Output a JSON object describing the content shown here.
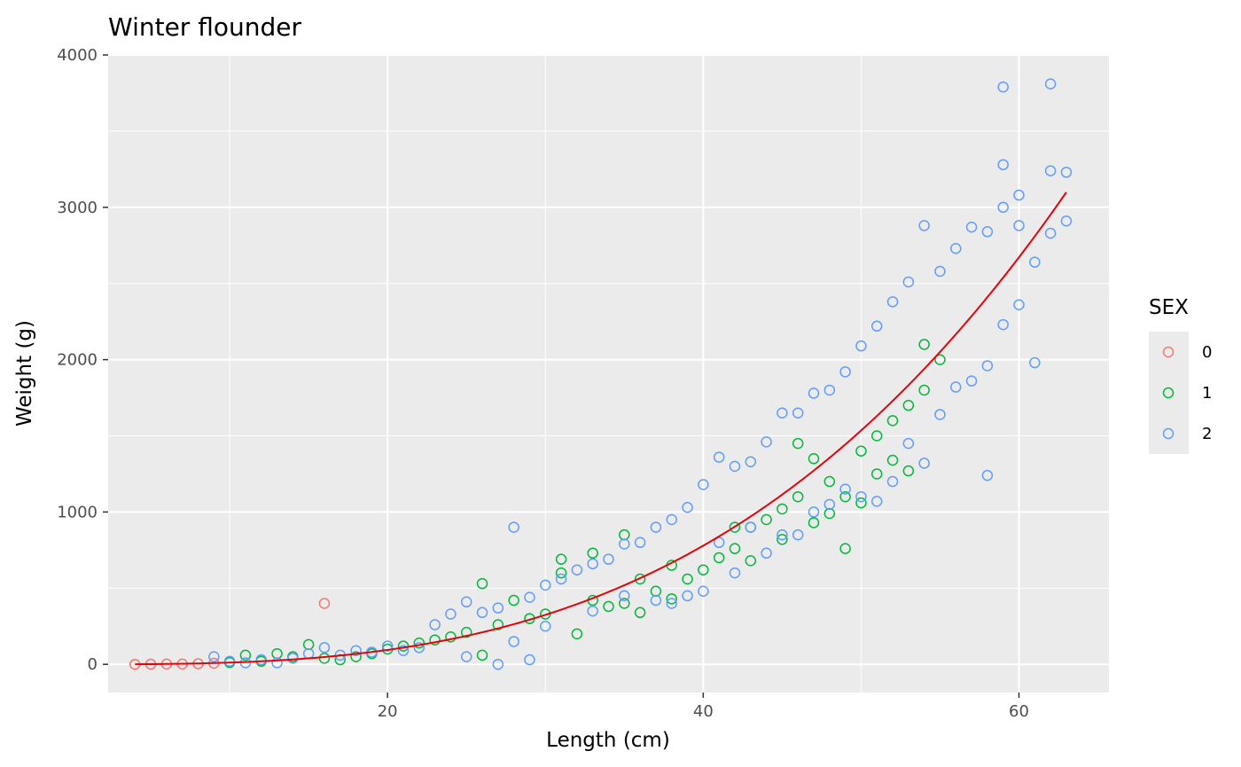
{
  "chart_data": {
    "type": "scatter",
    "title": "Winter flounder",
    "xlabel": "Length (cm)",
    "ylabel": "Weight (g)",
    "xlim": [
      2.3,
      65.7
    ],
    "ylim": [
      -185,
      4000
    ],
    "x_ticks": [
      20,
      40,
      60
    ],
    "y_ticks": [
      0,
      1000,
      2000,
      3000,
      4000
    ],
    "x_tick_labels": [
      "20",
      "40",
      "60"
    ],
    "y_tick_labels": [
      "0",
      "1000",
      "2000",
      "3000",
      "4000"
    ],
    "grid": true,
    "legend": {
      "title": "SEX",
      "placement": "right",
      "entries": [
        {
          "label": "0",
          "color": "#F8766D"
        },
        {
          "label": "1",
          "color": "#00BA38"
        },
        {
          "label": "2",
          "color": "#619CFF"
        }
      ]
    },
    "series": [
      {
        "name": "0",
        "color": "#F8766D",
        "points": [
          [
            4,
            0
          ],
          [
            5,
            1
          ],
          [
            6,
            2
          ],
          [
            7,
            2
          ],
          [
            8,
            4
          ],
          [
            9,
            7
          ],
          [
            16,
            400
          ]
        ]
      },
      {
        "name": "1",
        "color": "#00BA38",
        "points": [
          [
            10,
            12
          ],
          [
            11,
            60
          ],
          [
            12,
            20
          ],
          [
            13,
            70
          ],
          [
            14,
            50
          ],
          [
            15,
            130
          ],
          [
            16,
            40
          ],
          [
            17,
            30
          ],
          [
            18,
            50
          ],
          [
            19,
            70
          ],
          [
            20,
            100
          ],
          [
            21,
            120
          ],
          [
            22,
            140
          ],
          [
            23,
            160
          ],
          [
            24,
            180
          ],
          [
            25,
            210
          ],
          [
            26,
            530
          ],
          [
            26,
            60
          ],
          [
            27,
            260
          ],
          [
            28,
            420
          ],
          [
            29,
            300
          ],
          [
            30,
            330
          ],
          [
            31,
            690
          ],
          [
            31,
            600
          ],
          [
            32,
            200
          ],
          [
            33,
            730
          ],
          [
            33,
            420
          ],
          [
            34,
            380
          ],
          [
            35,
            850
          ],
          [
            35,
            400
          ],
          [
            36,
            340
          ],
          [
            36,
            560
          ],
          [
            37,
            480
          ],
          [
            38,
            430
          ],
          [
            38,
            650
          ],
          [
            39,
            560
          ],
          [
            40,
            620
          ],
          [
            41,
            700
          ],
          [
            42,
            900
          ],
          [
            42,
            760
          ],
          [
            43,
            680
          ],
          [
            43,
            900
          ],
          [
            44,
            950
          ],
          [
            45,
            1020
          ],
          [
            45,
            820
          ],
          [
            46,
            1100
          ],
          [
            46,
            1450
          ],
          [
            47,
            1350
          ],
          [
            47,
            930
          ],
          [
            48,
            990
          ],
          [
            48,
            1200
          ],
          [
            49,
            760
          ],
          [
            49,
            1100
          ],
          [
            50,
            1400
          ],
          [
            50,
            1060
          ],
          [
            51,
            1500
          ],
          [
            51,
            1250
          ],
          [
            52,
            1600
          ],
          [
            52,
            1340
          ],
          [
            53,
            1270
          ],
          [
            53,
            1700
          ],
          [
            54,
            1800
          ],
          [
            54,
            2100
          ],
          [
            55,
            2000
          ]
        ]
      },
      {
        "name": "2",
        "color": "#619CFF",
        "points": [
          [
            9,
            50
          ],
          [
            10,
            20
          ],
          [
            11,
            10
          ],
          [
            12,
            30
          ],
          [
            13,
            10
          ],
          [
            14,
            40
          ],
          [
            15,
            70
          ],
          [
            16,
            110
          ],
          [
            17,
            60
          ],
          [
            18,
            90
          ],
          [
            19,
            80
          ],
          [
            20,
            120
          ],
          [
            21,
            90
          ],
          [
            22,
            110
          ],
          [
            23,
            260
          ],
          [
            24,
            330
          ],
          [
            25,
            410
          ],
          [
            25,
            50
          ],
          [
            26,
            340
          ],
          [
            27,
            0
          ],
          [
            27,
            370
          ],
          [
            28,
            900
          ],
          [
            28,
            150
          ],
          [
            29,
            440
          ],
          [
            29,
            30
          ],
          [
            30,
            520
          ],
          [
            30,
            250
          ],
          [
            31,
            560
          ],
          [
            32,
            620
          ],
          [
            33,
            660
          ],
          [
            33,
            350
          ],
          [
            34,
            690
          ],
          [
            35,
            790
          ],
          [
            35,
            450
          ],
          [
            36,
            800
          ],
          [
            37,
            900
          ],
          [
            37,
            420
          ],
          [
            38,
            950
          ],
          [
            38,
            400
          ],
          [
            39,
            1030
          ],
          [
            39,
            450
          ],
          [
            40,
            1180
          ],
          [
            40,
            480
          ],
          [
            41,
            1360
          ],
          [
            41,
            800
          ],
          [
            42,
            1300
          ],
          [
            42,
            600
          ],
          [
            43,
            1330
          ],
          [
            43,
            900
          ],
          [
            44,
            1460
          ],
          [
            44,
            730
          ],
          [
            45,
            1650
          ],
          [
            45,
            850
          ],
          [
            46,
            1650
          ],
          [
            46,
            850
          ],
          [
            47,
            1780
          ],
          [
            47,
            1000
          ],
          [
            48,
            1800
          ],
          [
            48,
            1050
          ],
          [
            49,
            1920
          ],
          [
            49,
            1150
          ],
          [
            50,
            2090
          ],
          [
            50,
            1100
          ],
          [
            51,
            2220
          ],
          [
            51,
            1070
          ],
          [
            52,
            2380
          ],
          [
            52,
            1200
          ],
          [
            53,
            2510
          ],
          [
            53,
            1450
          ],
          [
            54,
            2880
          ],
          [
            54,
            1320
          ],
          [
            55,
            2580
          ],
          [
            55,
            1640
          ],
          [
            56,
            2730
          ],
          [
            56,
            1820
          ],
          [
            57,
            2870
          ],
          [
            57,
            1860
          ],
          [
            58,
            2840
          ],
          [
            58,
            1240
          ],
          [
            58,
            1960
          ],
          [
            59,
            3790
          ],
          [
            59,
            3280
          ],
          [
            59,
            3000
          ],
          [
            59,
            2230
          ],
          [
            60,
            3080
          ],
          [
            60,
            2880
          ],
          [
            60,
            2360
          ],
          [
            61,
            2640
          ],
          [
            61,
            1980
          ],
          [
            62,
            3810
          ],
          [
            62,
            3240
          ],
          [
            62,
            2830
          ],
          [
            63,
            3230
          ],
          [
            63,
            2910
          ]
        ]
      }
    ],
    "fit_line": {
      "color": "#E8000B",
      "a": 0.0105,
      "b": 3.04,
      "x_start": 4,
      "x_end": 63
    }
  }
}
